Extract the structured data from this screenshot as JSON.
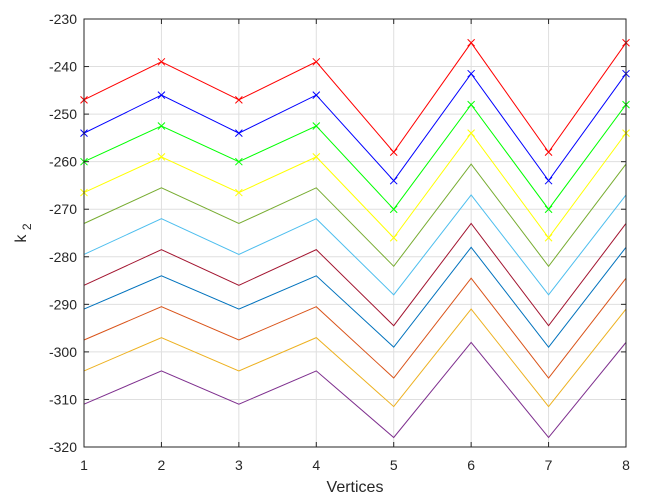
{
  "chart_data": {
    "type": "line",
    "xlabel": "Vertices",
    "ylabel_main": "k",
    "ylabel_sub": "2",
    "xlim": [
      1,
      8
    ],
    "ylim": [
      -320,
      -230
    ],
    "x": [
      1,
      2,
      3,
      4,
      5,
      6,
      7,
      8
    ],
    "xticks": [
      "1",
      "2",
      "3",
      "4",
      "5",
      "6",
      "7",
      "8"
    ],
    "yticks": [
      "-230",
      "-240",
      "-250",
      "-260",
      "-270",
      "-280",
      "-290",
      "-300",
      "-310",
      "-320"
    ],
    "grid": true,
    "series": [
      {
        "color": "#ff0000",
        "marker": "x",
        "values": [
          -247,
          -239,
          -247,
          -239,
          -258,
          -235,
          -258,
          -235
        ]
      },
      {
        "color": "#0000ff",
        "marker": "x",
        "values": [
          -254,
          -246,
          -254,
          -246,
          -264,
          -241.5,
          -264,
          -241.5
        ]
      },
      {
        "color": "#00ff00",
        "marker": "x",
        "values": [
          -260,
          -252.5,
          -260,
          -252.5,
          -270,
          -248,
          -270,
          -248
        ]
      },
      {
        "color": "#ffff00",
        "marker": "x",
        "values": [
          -266.5,
          -259,
          -266.5,
          -259,
          -276,
          -254,
          -276,
          -254
        ]
      },
      {
        "color": "#77ac30",
        "marker": "none",
        "values": [
          -273,
          -265.5,
          -273,
          -265.5,
          -282,
          -260.5,
          -282,
          -260.5
        ]
      },
      {
        "color": "#4dbeee",
        "marker": "none",
        "values": [
          -279.5,
          -272,
          -279.5,
          -272,
          -288,
          -267,
          -288,
          -267
        ]
      },
      {
        "color": "#a2142f",
        "marker": "none",
        "values": [
          -286,
          -278.5,
          -286,
          -278.5,
          -294.5,
          -273,
          -294.5,
          -273
        ]
      },
      {
        "color": "#0072bd",
        "marker": "none",
        "values": [
          -291,
          -284,
          -291,
          -284,
          -299,
          -278,
          -299,
          -278
        ]
      },
      {
        "color": "#d95319",
        "marker": "none",
        "values": [
          -297.5,
          -290.5,
          -297.5,
          -290.5,
          -305.5,
          -284.5,
          -305.5,
          -284.5
        ]
      },
      {
        "color": "#edb120",
        "marker": "none",
        "values": [
          -304,
          -297,
          -304,
          -297,
          -311.5,
          -291,
          -311.5,
          -291
        ]
      },
      {
        "color": "#7e2f8e",
        "marker": "none",
        "values": [
          -311,
          -304,
          -311,
          -304,
          -318,
          -298,
          -318,
          -298
        ]
      }
    ]
  }
}
